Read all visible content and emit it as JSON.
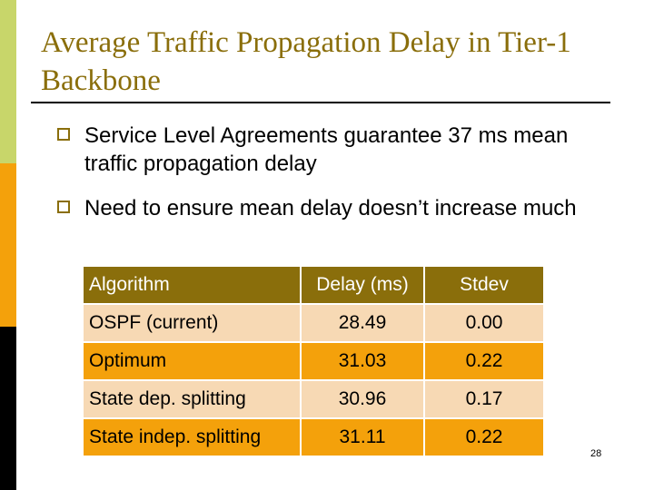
{
  "title": "Average Traffic Propagation Delay in Tier-1 Backbone",
  "bullets": [
    "Service Level Agreements guarantee 37 ms mean traffic propagation delay",
    "Need to ensure mean delay doesn’t increase much"
  ],
  "table": {
    "headers": [
      "Algorithm",
      "Delay (ms)",
      "Stdev"
    ],
    "rows": [
      [
        "OSPF (current)",
        "28.49",
        "0.00"
      ],
      [
        "Optimum",
        "31.03",
        "0.22"
      ],
      [
        "State dep. splitting",
        "30.96",
        "0.17"
      ],
      [
        "State indep. splitting",
        "31.11",
        "0.22"
      ]
    ]
  },
  "page_number": "28",
  "colors": {
    "accent": "#8a6e0b",
    "band_green": "#c8d66a",
    "band_orange": "#f4a10b",
    "band_black": "#000000",
    "row_light": "#f7d9b4",
    "row_dark": "#f4a10b"
  }
}
